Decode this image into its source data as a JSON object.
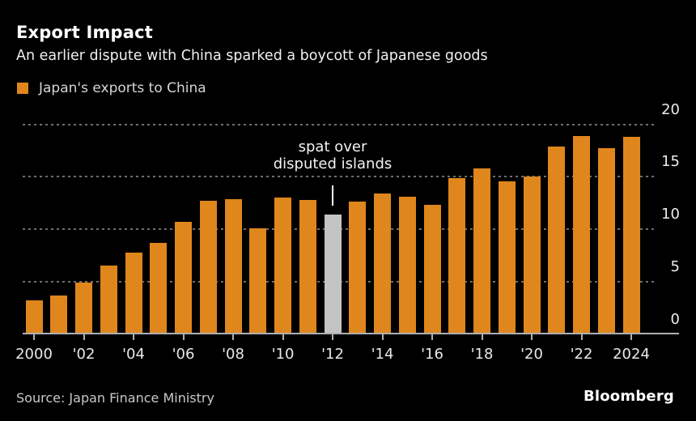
{
  "header": {
    "title": "Export Impact",
    "subtitle": "An earlier dispute with China sparked a boycott of Japanese goods"
  },
  "legend": {
    "label": "Japan's exports to China",
    "swatch_color": "#DF861C"
  },
  "annotation": {
    "line1": "spat over",
    "line2": "disputed islands",
    "pointer_year": 2012
  },
  "chart_data": {
    "type": "bar",
    "title": "Export Impact",
    "series_name": "Japan's exports to China",
    "x": [
      2000,
      2001,
      2002,
      2003,
      2004,
      2005,
      2006,
      2007,
      2008,
      2009,
      2010,
      2011,
      2012,
      2013,
      2014,
      2015,
      2016,
      2017,
      2018,
      2019,
      2020,
      2021,
      2022,
      2023,
      2024
    ],
    "values": [
      3.2,
      3.7,
      4.9,
      6.5,
      7.8,
      8.7,
      10.7,
      12.7,
      12.9,
      10.1,
      13.0,
      12.8,
      11.4,
      12.6,
      13.4,
      13.1,
      12.3,
      14.9,
      15.8,
      14.6,
      15.0,
      17.9,
      18.9,
      17.7,
      18.8
    ],
    "highlight_year": 2012,
    "bar_color": "#DF861C",
    "highlight_color": "#C4C4C4",
    "ylim": [
      0,
      20
    ],
    "yticks": [
      0,
      5,
      10,
      15,
      20
    ],
    "yaxis_side": "right",
    "grid": "dotted-horizontal",
    "xticks": [
      {
        "year": 2000,
        "label": "2000"
      },
      {
        "year": 2002,
        "label": "'02"
      },
      {
        "year": 2004,
        "label": "'04"
      },
      {
        "year": 2006,
        "label": "'06"
      },
      {
        "year": 2008,
        "label": "'08"
      },
      {
        "year": 2010,
        "label": "'10"
      },
      {
        "year": 2012,
        "label": "'12"
      },
      {
        "year": 2014,
        "label": "'14"
      },
      {
        "year": 2016,
        "label": "'16"
      },
      {
        "year": 2018,
        "label": "'18"
      },
      {
        "year": 2020,
        "label": "'20"
      },
      {
        "year": 2022,
        "label": "'22"
      },
      {
        "year": 2024,
        "label": "2024"
      }
    ]
  },
  "footer": {
    "source": "Source: Japan Finance Ministry",
    "brand": "Bloomberg"
  }
}
